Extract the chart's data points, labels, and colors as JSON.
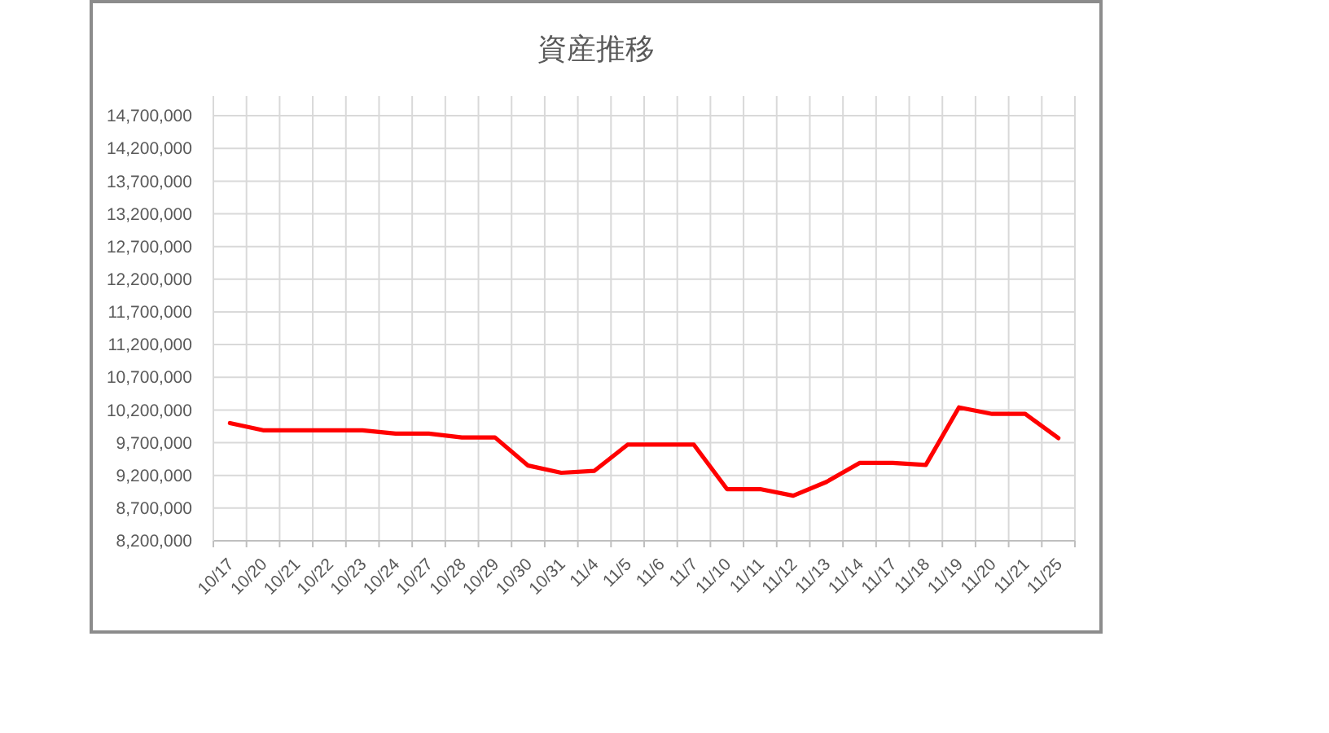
{
  "chart_data": {
    "type": "line",
    "title": "資産推移",
    "categories": [
      "10/17",
      "10/20",
      "10/21",
      "10/22",
      "10/23",
      "10/24",
      "10/27",
      "10/28",
      "10/29",
      "10/30",
      "10/31",
      "11/4",
      "11/5",
      "11/6",
      "11/7",
      "11/10",
      "11/11",
      "11/12",
      "11/13",
      "11/14",
      "11/17",
      "11/18",
      "11/19",
      "11/20",
      "11/21",
      "11/25"
    ],
    "series": [
      {
        "color": "#ff0000",
        "values": [
          10000000,
          9890000,
          9890000,
          9890000,
          9890000,
          9840000,
          9840000,
          9780000,
          9780000,
          9350000,
          9240000,
          9270000,
          9670000,
          9670000,
          9670000,
          8990000,
          8990000,
          8890000,
          9100000,
          9390000,
          9390000,
          9360000,
          10240000,
          10140000,
          10140000,
          9770000
        ]
      }
    ],
    "ylim": [
      8200000,
      15000000
    ],
    "yticks": [
      {
        "value": 8200000,
        "label": "8,200,000"
      },
      {
        "value": 8700000,
        "label": "8,700,000"
      },
      {
        "value": 9200000,
        "label": "9,200,000"
      },
      {
        "value": 9700000,
        "label": "9,700,000"
      },
      {
        "value": 10200000,
        "label": "10,200,000"
      },
      {
        "value": 10700000,
        "label": "10,700,000"
      },
      {
        "value": 11200000,
        "label": "11,200,000"
      },
      {
        "value": 11700000,
        "label": "11,700,000"
      },
      {
        "value": 12200000,
        "label": "12,200,000"
      },
      {
        "value": 12700000,
        "label": "12,700,000"
      },
      {
        "value": 13200000,
        "label": "13,200,000"
      },
      {
        "value": 13700000,
        "label": "13,700,000"
      },
      {
        "value": 14200000,
        "label": "14,200,000"
      },
      {
        "value": 14700000,
        "label": "14,700,000"
      }
    ],
    "grid": true
  }
}
